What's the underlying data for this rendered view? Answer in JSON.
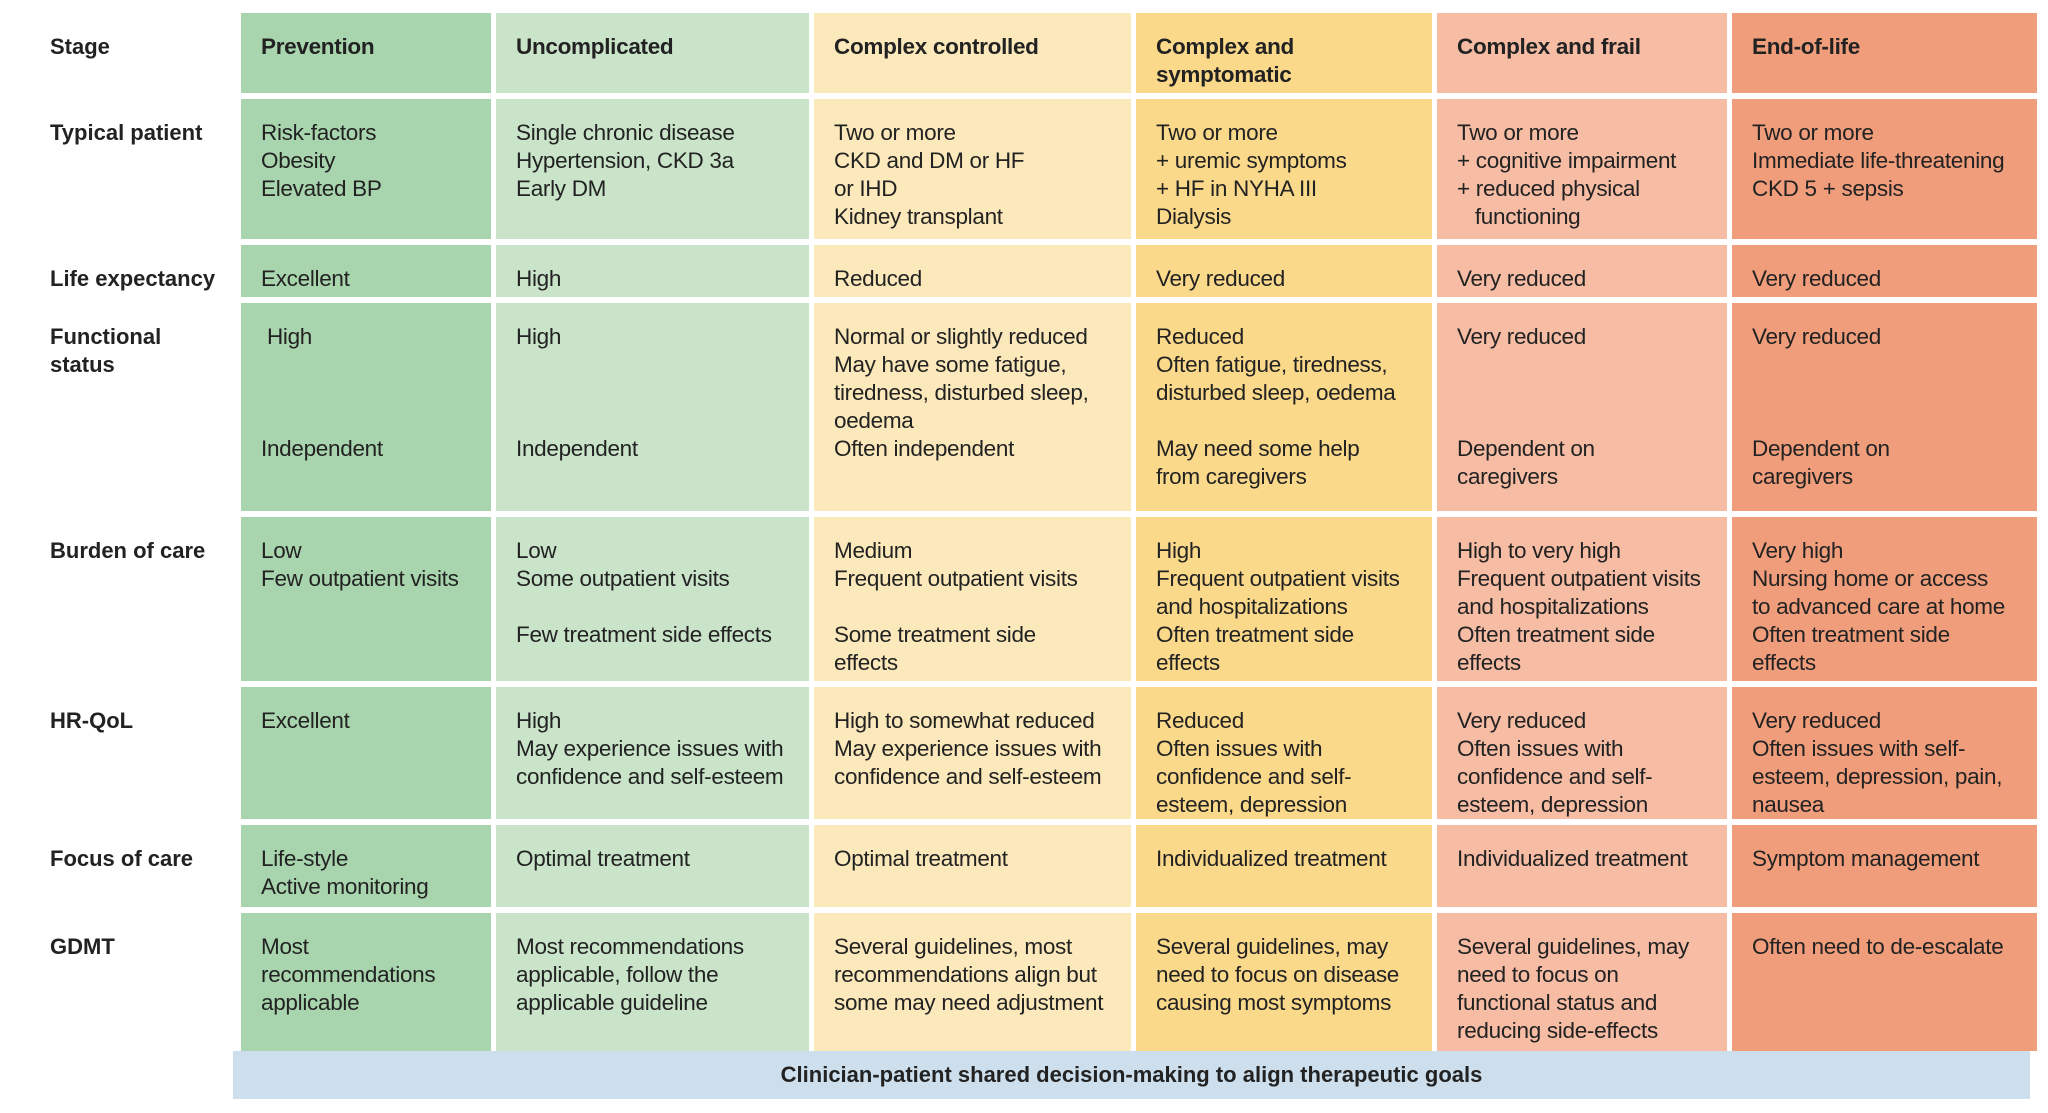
{
  "stage_label": "Stage",
  "stages": [
    "Prevention",
    "Uncomplicated",
    "Complex controlled",
    "Complex and\nsymptomatic",
    "Complex and frail",
    "End-of-life"
  ],
  "colors": [
    "#a9d5ae",
    "#c9e4c9",
    "#fce9bb",
    "#fbd98b",
    "#f6bca4",
    "#f09d7b"
  ],
  "rows": [
    {
      "label": "Typical patient",
      "cells": [
        [
          "Risk-factors",
          "Obesity",
          "Elevated BP"
        ],
        [
          "Single chronic disease",
          "Hypertension, CKD 3a",
          "Early DM"
        ],
        [
          "Two or more",
          "CKD and DM or HF",
          "or IHD",
          "Kidney transplant"
        ],
        [
          "Two or more",
          "+ uremic symptoms",
          "+ HF in NYHA III",
          "Dialysis"
        ],
        [
          "Two or more",
          "+ cognitive impairment",
          "+ reduced physical",
          "   functioning"
        ],
        [
          "Two or more",
          "Immediate life-threatening",
          "CKD 5 + sepsis"
        ]
      ]
    },
    {
      "label": "Life expectancy",
      "cells": [
        [
          "Excellent"
        ],
        [
          "High"
        ],
        [
          "Reduced"
        ],
        [
          "Very reduced"
        ],
        [
          "Very reduced"
        ],
        [
          "Very reduced"
        ]
      ]
    },
    {
      "label": "Functional\nstatus",
      "cells": [
        [
          " High",
          "",
          "",
          "",
          "Independent"
        ],
        [
          "High",
          "",
          "",
          "",
          "Independent"
        ],
        [
          "Normal or slightly reduced",
          "May have some fatigue,",
          "tiredness, disturbed sleep,",
          "oedema",
          "Often independent"
        ],
        [
          "Reduced",
          "Often fatigue, tiredness,",
          "disturbed sleep, oedema",
          "",
          "May need some help",
          "from caregivers"
        ],
        [
          "Very reduced",
          "",
          "",
          "",
          "Dependent on",
          "caregivers"
        ],
        [
          "Very reduced",
          "",
          "",
          "",
          "Dependent on",
          "caregivers"
        ]
      ]
    },
    {
      "label": "Burden of care",
      "cells": [
        [
          "Low",
          "Few outpatient visits"
        ],
        [
          "Low",
          "Some outpatient visits",
          "",
          "Few treatment side effects"
        ],
        [
          "Medium",
          "Frequent outpatient visits",
          "",
          "Some treatment side",
          "effects"
        ],
        [
          "High",
          "Frequent outpatient visits",
          "and hospitalizations",
          "Often treatment side",
          "effects"
        ],
        [
          "High to very high",
          "Frequent outpatient visits",
          "and hospitalizations",
          "Often treatment side",
          "effects"
        ],
        [
          "Very high",
          "Nursing home or access",
          "to advanced care at home",
          "Often treatment side",
          "effects"
        ]
      ]
    },
    {
      "label": "HR-QoL",
      "cells": [
        [
          "Excellent"
        ],
        [
          "High",
          "May experience issues with",
          "confidence and self-esteem"
        ],
        [
          "High to somewhat reduced",
          "May experience issues with",
          "confidence and self-esteem"
        ],
        [
          "Reduced",
          "Often issues with",
          "confidence and self-",
          "esteem, depression"
        ],
        [
          "Very reduced",
          "Often issues with",
          "confidence and self-",
          "esteem, depression"
        ],
        [
          "Very reduced",
          "Often issues with self-",
          "esteem, depression, pain,",
          "nausea"
        ]
      ]
    },
    {
      "label": "Focus of care",
      "cells": [
        [
          "Life-style",
          "Active monitoring"
        ],
        [
          "Optimal treatment"
        ],
        [
          "Optimal treatment"
        ],
        [
          "Individualized treatment"
        ],
        [
          "Individualized treatment"
        ],
        [
          "Symptom management"
        ]
      ]
    },
    {
      "label": "GDMT",
      "cells": [
        [
          "Most",
          "recommendations",
          "applicable"
        ],
        [
          "Most recommendations",
          "applicable, follow the",
          "applicable guideline"
        ],
        [
          "Several guidelines, most",
          "recommendations align but",
          "some may need adjustment"
        ],
        [
          "Several guidelines, may",
          "need to focus on disease",
          "causing most symptoms"
        ],
        [
          "Several guidelines, may",
          "need to focus on",
          "functional status and",
          "reducing side-effects"
        ],
        [
          "Often need to de-escalate"
        ]
      ]
    }
  ],
  "footer": "Clinician-patient shared decision-making to align therapeutic goals"
}
